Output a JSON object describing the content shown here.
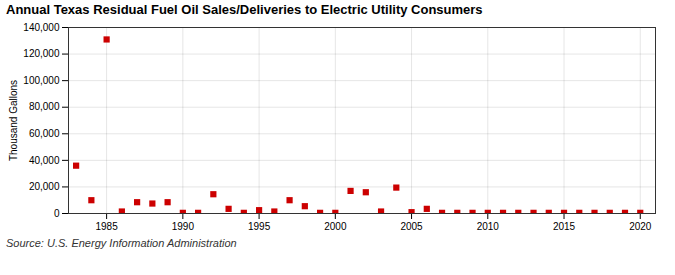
{
  "chart_data": {
    "type": "scatter",
    "title": "Annual Texas Residual Fuel Oil Sales/Deliveries to Electric Utility Consumers",
    "ylabel": "Thousand Gallons",
    "annotations": [
      "Source: U.S. Energy Information Administration"
    ],
    "x": [
      1983,
      1984,
      1985,
      1986,
      1987,
      1988,
      1989,
      1990,
      1991,
      1992,
      1993,
      1994,
      1995,
      1996,
      1997,
      1998,
      1999,
      2000,
      2001,
      2002,
      2003,
      2004,
      2005,
      2006,
      2007,
      2008,
      2009,
      2010,
      2011,
      2012,
      2013,
      2014,
      2015,
      2016,
      2017,
      2018,
      2019,
      2020
    ],
    "values": [
      36000,
      10000,
      131000,
      1500,
      8500,
      7500,
      8500,
      500,
      500,
      14500,
      3500,
      500,
      2500,
      1500,
      10000,
      5500,
      500,
      500,
      17000,
      16000,
      1500,
      19500,
      1000,
      3500,
      500,
      500,
      500,
      500,
      500,
      500,
      500,
      500,
      500,
      500,
      500,
      500,
      500,
      500
    ],
    "color": "#CC0000",
    "marker": "square",
    "xlim": [
      1982.5,
      2021
    ],
    "xticks": [
      1985,
      1990,
      1995,
      2000,
      2005,
      2010,
      2015,
      2020
    ],
    "ylim": [
      0,
      140000
    ],
    "yticks": [
      0,
      {
        "value": 20000,
        "label": "20,000"
      },
      {
        "value": 40000,
        "label": "40,000"
      },
      {
        "value": 60000,
        "label": "60,000"
      },
      {
        "value": 80000,
        "label": "80,000"
      },
      {
        "value": 100000,
        "label": "100,000"
      },
      {
        "value": 120000,
        "label": "120,000"
      },
      {
        "value": 140000,
        "label": "140,000"
      }
    ],
    "grid": true
  }
}
